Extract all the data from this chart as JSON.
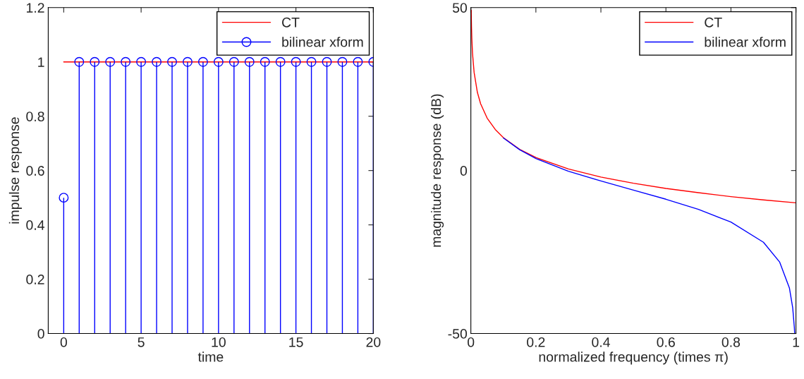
{
  "chart_data": [
    {
      "type": "lollipop",
      "xlabel": "time",
      "ylabel": "impulse response",
      "xlim": [
        -1,
        20
      ],
      "ylim": [
        0,
        1.2
      ],
      "xticks": [
        0,
        5,
        10,
        15,
        20
      ],
      "yticks": [
        0,
        0.2,
        0.4,
        0.6,
        0.8,
        1,
        1.2
      ],
      "grid": false,
      "legend": "top right",
      "series": [
        {
          "name": "CT",
          "type": "line",
          "color": "#ff0000",
          "x": [
            0,
            20
          ],
          "values": [
            1,
            1
          ]
        },
        {
          "name": "bilinear xform",
          "type": "lollipop",
          "color": "#0000ff",
          "marker": "circle",
          "x": [
            0,
            1,
            2,
            3,
            4,
            5,
            6,
            7,
            8,
            9,
            10,
            11,
            12,
            13,
            14,
            15,
            16,
            17,
            18,
            19,
            20
          ],
          "values": [
            0.5,
            1,
            1,
            1,
            1,
            1,
            1,
            1,
            1,
            1,
            1,
            1,
            1,
            1,
            1,
            1,
            1,
            1,
            1,
            1,
            1
          ]
        }
      ]
    },
    {
      "type": "line",
      "xlabel": "normalized frequency (times π)",
      "ylabel": "magnitude response (dB)",
      "xlim": [
        0,
        1
      ],
      "ylim": [
        -50,
        50
      ],
      "xticks": [
        0,
        0.2,
        0.4,
        0.6,
        0.8,
        1
      ],
      "yticks": [
        -50,
        0,
        50
      ],
      "grid": false,
      "legend": "top right",
      "series": [
        {
          "name": "CT",
          "color": "#ff0000",
          "x": [
            0.0011,
            0.002,
            0.003,
            0.005,
            0.01,
            0.02,
            0.03,
            0.05,
            0.075,
            0.1,
            0.15,
            0.2,
            0.3,
            0.4,
            0.5,
            0.6,
            0.7,
            0.8,
            0.9,
            1.0
          ],
          "values": [
            49.2,
            44.0,
            40.5,
            36.1,
            30.1,
            24.0,
            20.5,
            16.1,
            12.6,
            10.1,
            6.5,
            4.0,
            0.5,
            -2.0,
            -3.9,
            -5.5,
            -6.8,
            -8.0,
            -9.0,
            -9.9
          ]
        },
        {
          "name": "bilinear xform",
          "color": "#0000ff",
          "x": [
            0.1,
            0.15,
            0.2,
            0.3,
            0.4,
            0.5,
            0.6,
            0.7,
            0.8,
            0.9,
            0.95,
            0.98,
            0.99,
            0.995,
            0.996
          ],
          "values": [
            10.0,
            6.4,
            3.7,
            -0.2,
            -3.2,
            -6.0,
            -8.8,
            -11.9,
            -15.8,
            -22.0,
            -28.1,
            -36.1,
            -42.1,
            -48.1,
            -50
          ]
        }
      ]
    }
  ]
}
